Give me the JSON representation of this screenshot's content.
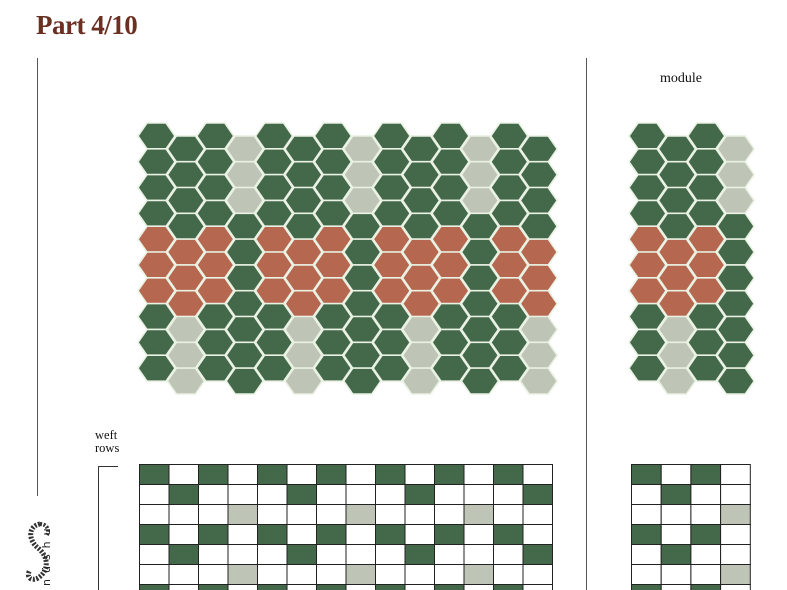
{
  "header": {
    "title": "Part 4/10"
  },
  "labels": {
    "module": "module",
    "weft_line1": "weft",
    "weft_line2": "rows"
  },
  "brand": {
    "name": "nüshu",
    "icon": "nushu-logo-icon"
  },
  "colors": {
    "title": "#6b3022",
    "G": "#44684a",
    "R": "#b5684f",
    "L": "#bfc5b6",
    "W": "#ffffff",
    "hex_gap": "#eaf2e4",
    "grid_line": "#222222"
  },
  "hex_pattern": {
    "legend": {
      "G": "green",
      "R": "terracotta",
      "L": "pale sage"
    },
    "main_columns": [
      "GGGGRRRGGG",
      "GGGGRRRLLL",
      "GGGGRRRGGG",
      "LLLGGGGGGG",
      "GGGGRRRGGG",
      "GGGGRRRLLL",
      "GGGGRRRGGG",
      "LLLGGGGGGG",
      "GGGGRRRGGG",
      "GGGGRRRLLL",
      "GGGGRRRGGG",
      "LLLGGGGGGG",
      "GGGGRRRGGG",
      "GGGGRRRLLL"
    ],
    "module_columns": [
      "GGGGRRRGGG",
      "GGGGRRRLLL",
      "GGGGRRRGGG",
      "LLLGGGGGGG"
    ]
  },
  "weave_grid": {
    "legend": {
      "G": "green",
      "L": "pale sage",
      "W": "white"
    },
    "main_rows": [
      "GWGWGWGWGWGWGW",
      "WGWWWGWWWGWWWG",
      "WWWLWWWLWWWLWW",
      "GWGWGWGWGWGWGW",
      "WGWWWGWWWGWWWG",
      "WWWLWWWLWWWLWW",
      "GWGWGWGWGWGWGW"
    ],
    "module_rows": [
      "GWGW",
      "WGWW",
      "WWWL",
      "GWGW",
      "WGWW",
      "WWWL",
      "GWGW"
    ]
  }
}
